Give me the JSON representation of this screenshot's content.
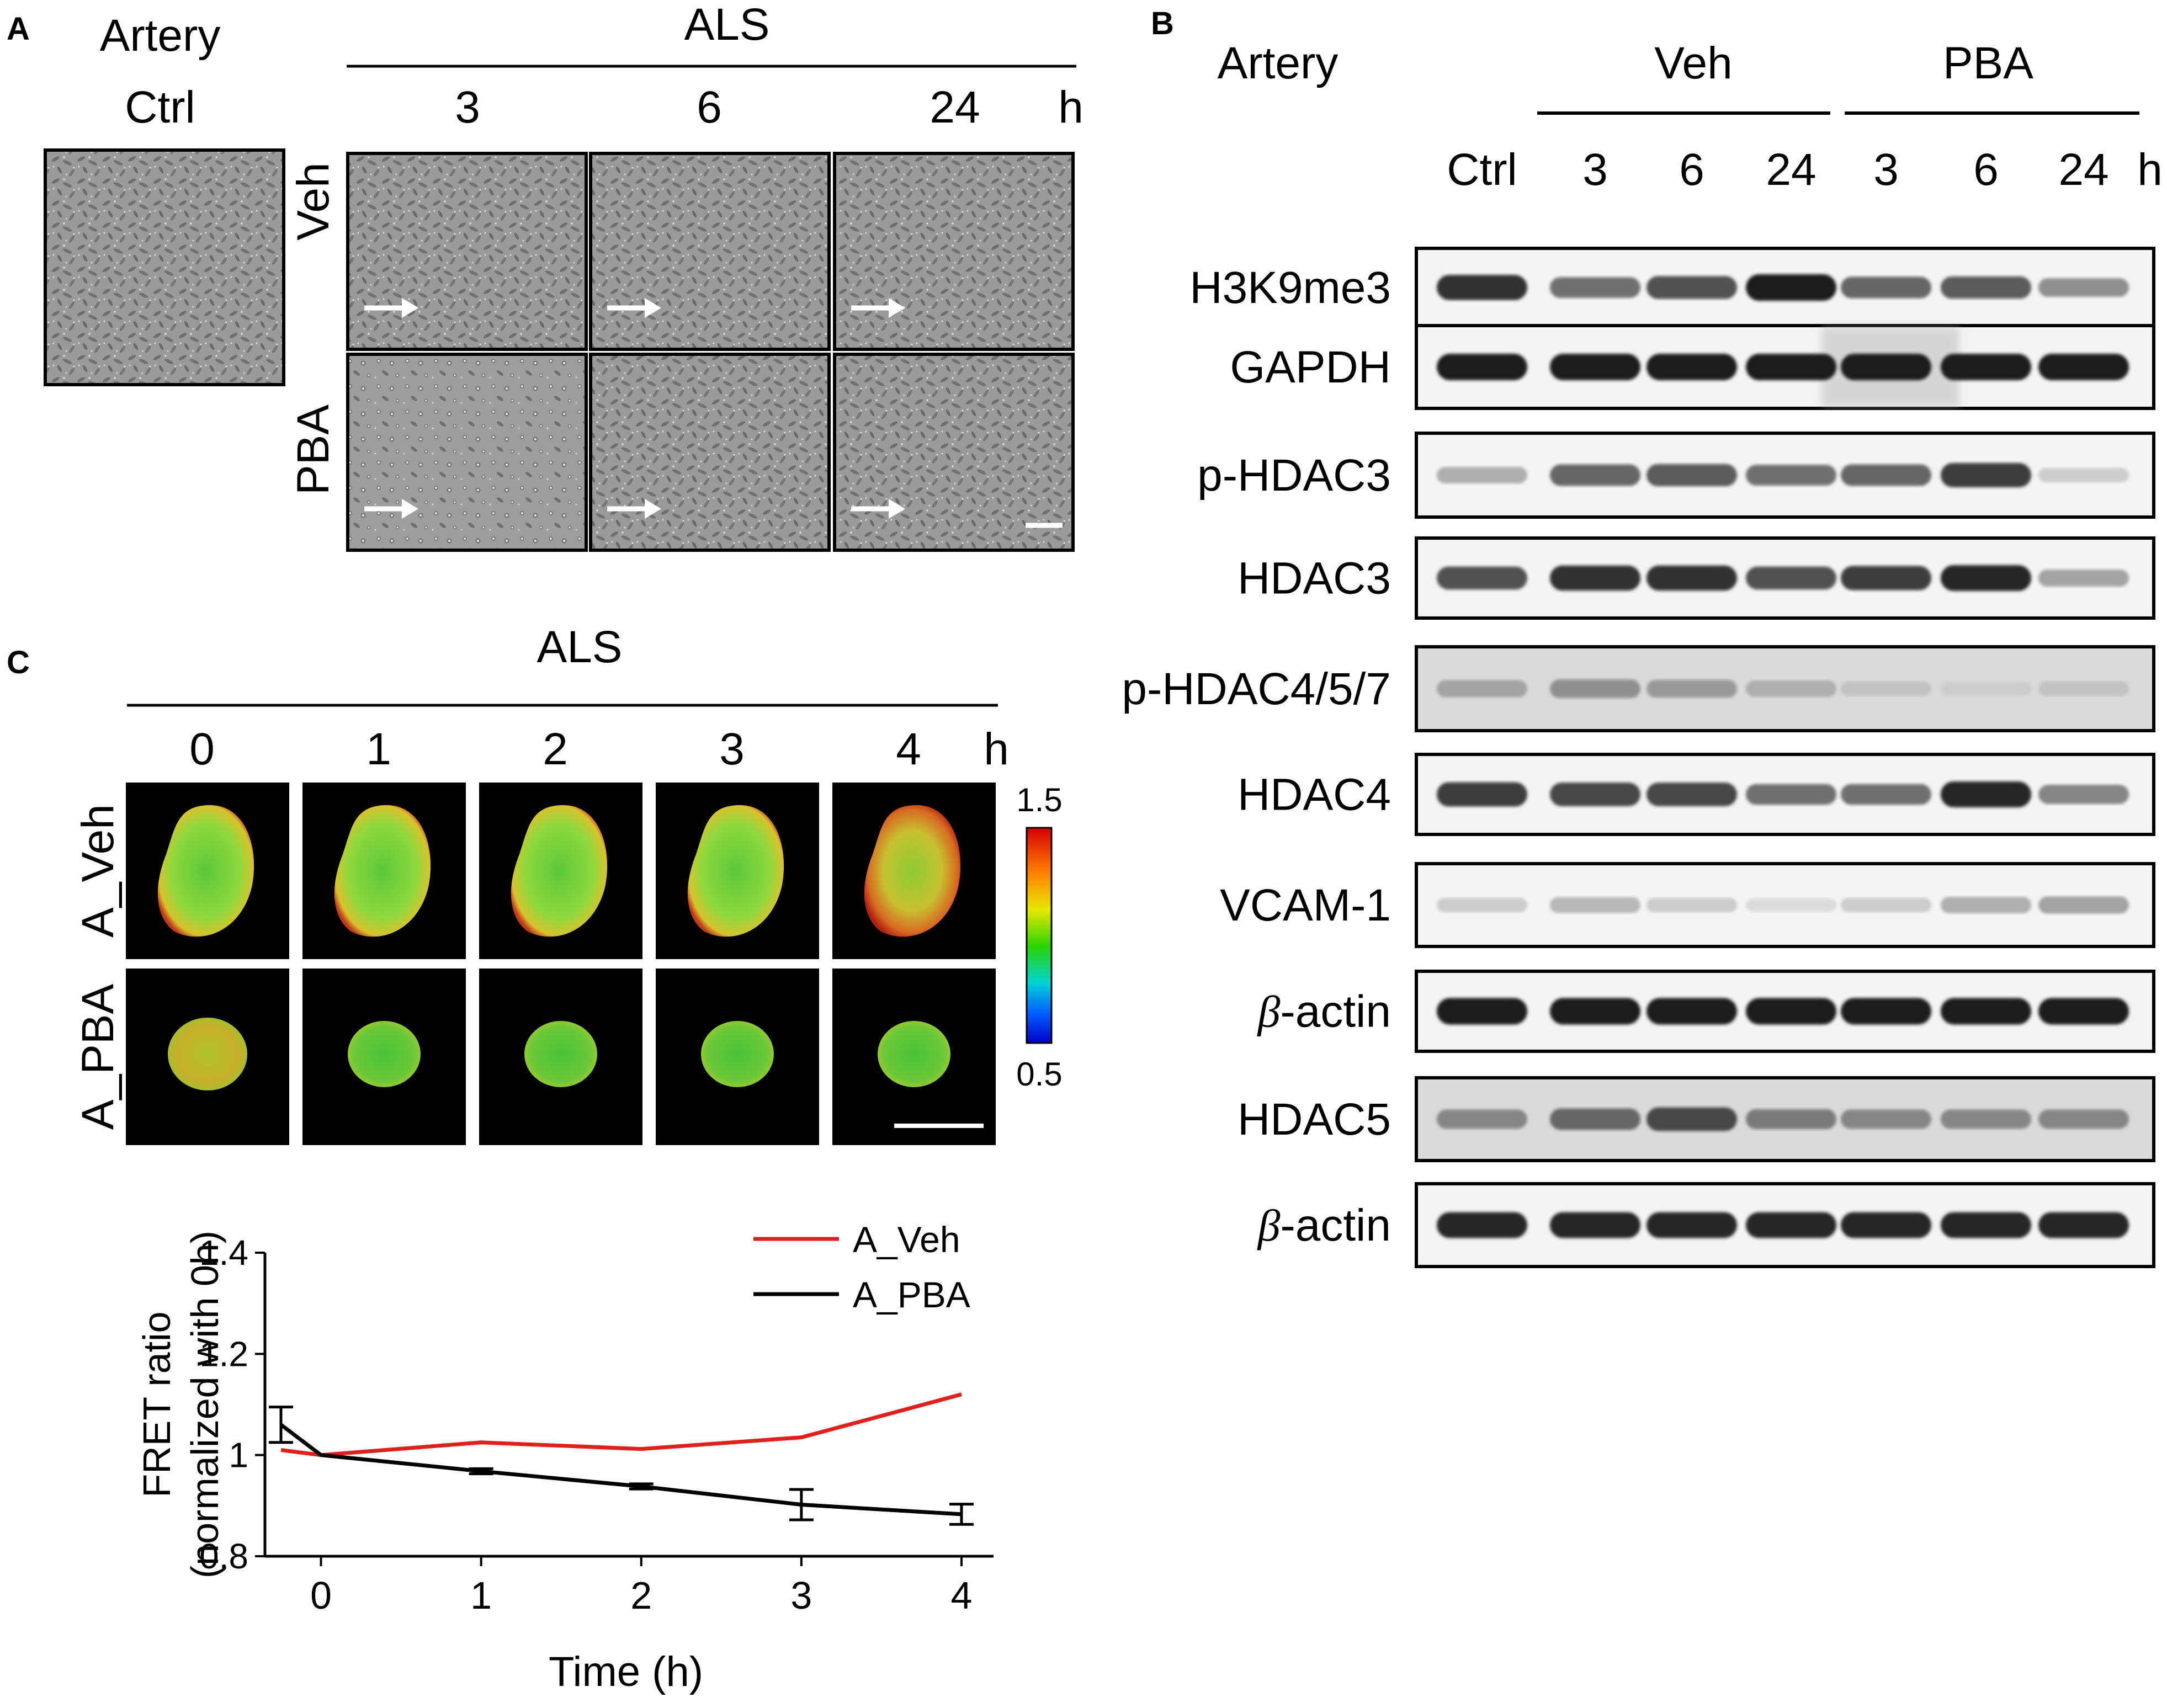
{
  "panelA": {
    "letter": "A",
    "artery": "Artery",
    "ctrl": "Ctrl",
    "treatment": "ALS",
    "times": [
      "3",
      "6",
      "24"
    ],
    "unit": "h",
    "rows": [
      "Veh",
      "PBA"
    ]
  },
  "panelB": {
    "letter": "B",
    "artery": "Artery",
    "groups": [
      "Veh",
      "PBA"
    ],
    "lanes": [
      "Ctrl",
      "3",
      "6",
      "24",
      "3",
      "6",
      "24"
    ],
    "unit": "h",
    "beta": "β",
    "blots": [
      {
        "label": "H3K9me3",
        "intensities": [
          0.9,
          0.6,
          0.75,
          1.0,
          0.65,
          0.7,
          0.45
        ]
      },
      {
        "label": "GAPDH",
        "intensities": [
          1.0,
          1.0,
          1.0,
          1.0,
          1.0,
          1.0,
          1.0
        ]
      },
      {
        "label": "p-HDAC3",
        "intensities": [
          0.3,
          0.65,
          0.7,
          0.6,
          0.65,
          0.85,
          0.15
        ]
      },
      {
        "label": "HDAC3",
        "intensities": [
          0.75,
          0.9,
          0.9,
          0.75,
          0.85,
          0.95,
          0.35
        ]
      },
      {
        "label": "p-HDAC4/5/7",
        "intensities": [
          0.35,
          0.45,
          0.4,
          0.3,
          0.2,
          0.15,
          0.2
        ]
      },
      {
        "label": "HDAC4",
        "intensities": [
          0.85,
          0.8,
          0.8,
          0.6,
          0.6,
          0.95,
          0.5
        ]
      },
      {
        "label": "VCAM-1",
        "intensities": [
          0.15,
          0.25,
          0.15,
          0.08,
          0.15,
          0.3,
          0.35
        ]
      },
      {
        "label": "-actin",
        "intensities": [
          1.0,
          1.0,
          1.0,
          1.0,
          1.0,
          1.0,
          1.0
        ]
      },
      {
        "label": "HDAC5",
        "intensities": [
          0.5,
          0.65,
          0.8,
          0.55,
          0.5,
          0.5,
          0.5
        ]
      },
      {
        "label": "-actin",
        "intensities": [
          0.95,
          0.95,
          0.95,
          0.95,
          0.95,
          0.95,
          0.95
        ]
      }
    ]
  },
  "panelC": {
    "letter": "C",
    "treatment": "ALS",
    "times": [
      "0",
      "1",
      "2",
      "3",
      "4"
    ],
    "unit": "h",
    "rows": [
      "A_Veh",
      "A_PBA"
    ],
    "colorbar": {
      "max": "1.5",
      "min": "0.5"
    }
  },
  "chart_data": {
    "type": "line",
    "title": "",
    "xlabel": "Time (h)",
    "ylabel": "FRET ratio",
    "ylabel2": "(normalized  with 0h)",
    "xlim": [
      -0.35,
      4.2
    ],
    "ylim": [
      0.8,
      1.4
    ],
    "xticks": [
      "0",
      "1",
      "2",
      "3",
      "4"
    ],
    "yticks": [
      "0.8",
      "1",
      "1.2",
      "1.4"
    ],
    "legend_position": "top-right",
    "series": [
      {
        "name": "A_Veh",
        "color": "#e0201b",
        "x": [
          -0.25,
          0,
          1,
          2,
          3,
          4
        ],
        "y": [
          1.01,
          1.0,
          1.025,
          1.012,
          1.035,
          1.12
        ],
        "err": [
          0,
          0,
          0,
          0,
          0,
          0
        ]
      },
      {
        "name": "A_PBA",
        "color": "#000000",
        "x": [
          -0.25,
          0,
          1,
          2,
          3,
          4
        ],
        "y": [
          1.06,
          1.0,
          0.968,
          0.938,
          0.902,
          0.883
        ],
        "err": [
          0.035,
          0,
          0.005,
          0.005,
          0.03,
          0.02
        ]
      }
    ]
  }
}
